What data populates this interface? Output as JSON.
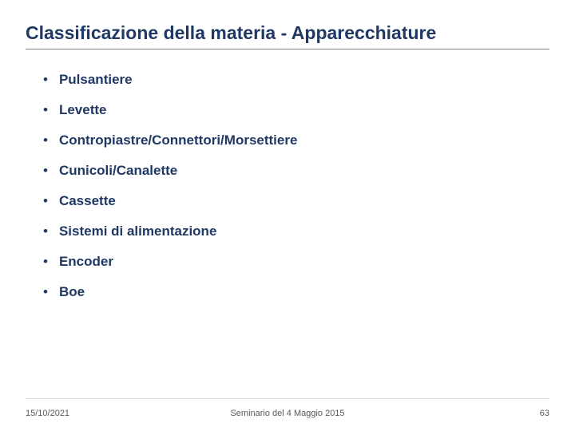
{
  "title": {
    "text": "Classificazione della materia - Apparecchiature",
    "color": "#1f3864",
    "fontsize": 23
  },
  "items": [
    {
      "text": "Pulsantiere"
    },
    {
      "text": "Levette"
    },
    {
      "text": "Contropiastre/Connettori/Morsettiere"
    },
    {
      "text": "Cunicoli/Canalette"
    },
    {
      "text": "Cassette"
    },
    {
      "text": "Sistemi di alimentazione"
    },
    {
      "text": "Encoder"
    },
    {
      "text": "Boe"
    }
  ],
  "item_style": {
    "color": "#1f3864",
    "fontsize": 17,
    "bullet_char": "•"
  },
  "rule_color": "#7f7f7f",
  "footer": {
    "date": "15/10/2021",
    "center": "Seminario del 4 Maggio 2015",
    "page": "63",
    "color": "#595959",
    "fontsize": 11
  },
  "background_color": "#ffffff"
}
